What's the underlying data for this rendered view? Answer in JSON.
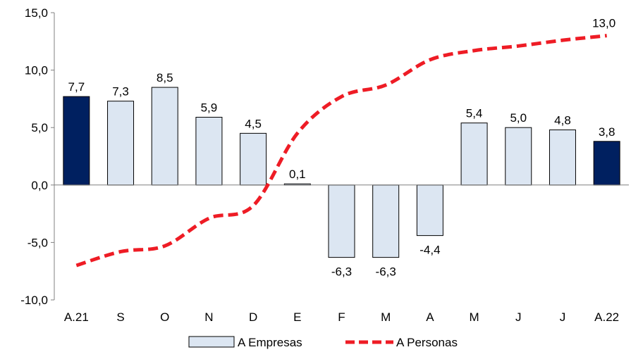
{
  "chart_data": {
    "type": "bar",
    "categories": [
      "A.21",
      "S",
      "O",
      "N",
      "D",
      "E",
      "F",
      "M",
      "A",
      "M",
      "J",
      "J",
      "A.22"
    ],
    "ylim": [
      -10,
      15
    ],
    "yticks": [
      "15,0",
      "10,0",
      "5,0",
      "0,0",
      "-5,0",
      "-10,0"
    ],
    "ytick_values": [
      15,
      10,
      5,
      0,
      -5,
      -10
    ],
    "grid": false,
    "legend": "bottom",
    "series": [
      {
        "name": "A Empresas",
        "kind": "bar",
        "values": [
          7.7,
          7.3,
          8.5,
          5.9,
          4.5,
          0.1,
          -6.3,
          -6.3,
          -4.4,
          5.4,
          5.0,
          4.8,
          3.8
        ],
        "labels": [
          "7,7",
          "7,3",
          "8,5",
          "5,9",
          "4,5",
          "0,1",
          "-6,3",
          "-6,3",
          "-4,4",
          "5,4",
          "5,0",
          "4,8",
          "3,8"
        ],
        "highlight": [
          true,
          false,
          false,
          false,
          false,
          false,
          false,
          false,
          false,
          false,
          false,
          false,
          true
        ],
        "color": "#dce6f2",
        "highlight_color": "#002060",
        "stroke": "#000000"
      },
      {
        "name": "A Personas",
        "kind": "line",
        "values": [
          -7.0,
          -5.8,
          -5.3,
          -2.9,
          -1.8,
          4.5,
          7.7,
          8.7,
          10.9,
          11.7,
          12.1,
          12.6,
          13.0
        ],
        "end_label": "13,0",
        "color": "#ee1c25",
        "dashed": true
      }
    ]
  }
}
